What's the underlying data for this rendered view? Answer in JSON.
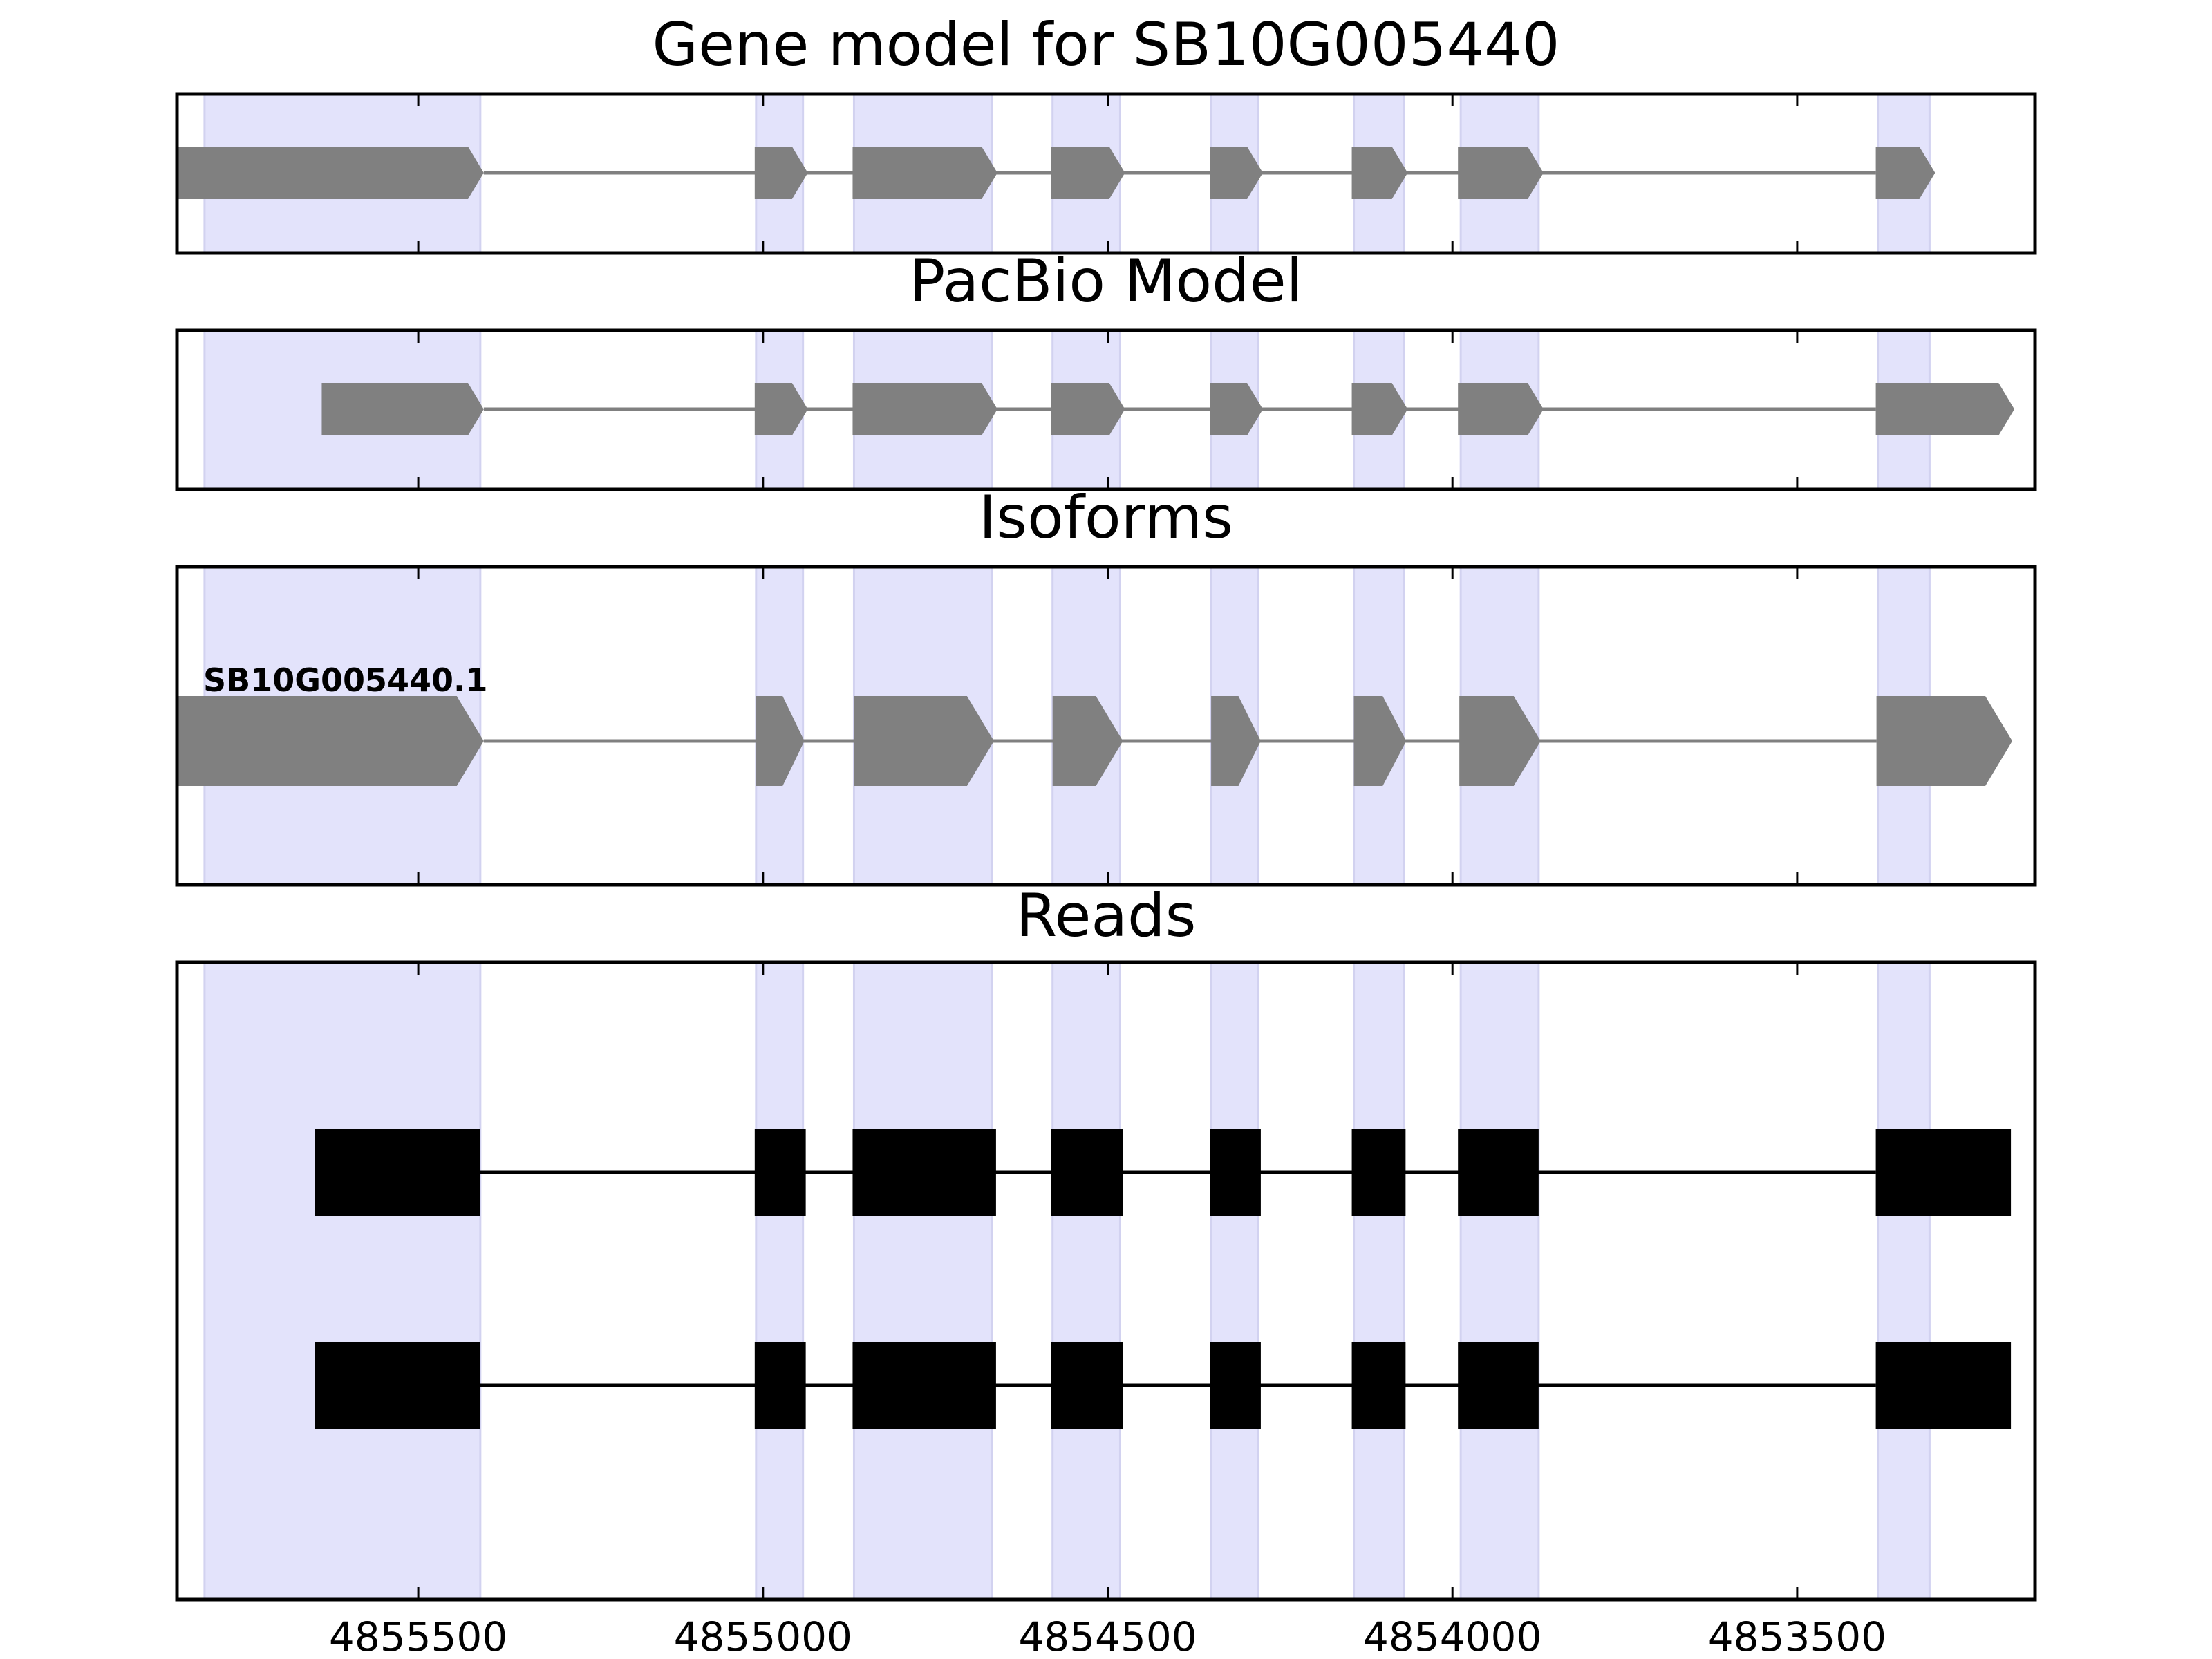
{
  "colors": {
    "exon_highlight": "#e3e3fb",
    "feature_fill": "#808080",
    "intron_line": "#808080",
    "read_fill": "#000000",
    "axis": "#000000",
    "background": "#ffffff"
  },
  "chart_data": {
    "type": "gene-track",
    "x_axis": {
      "range": [
        4855850,
        4853155
      ],
      "reversed": true,
      "ticks": [
        4855500,
        4855000,
        4854500,
        4854000,
        4853500
      ],
      "tick_labels": [
        "4855500",
        "4855000",
        "4854500",
        "4854000",
        "4853500"
      ]
    },
    "exon_highlights": [
      [
        4855810,
        4855410
      ],
      [
        4855010,
        4854942
      ],
      [
        4854868,
        4854668
      ],
      [
        4854580,
        4854482
      ],
      [
        4854350,
        4854282
      ],
      [
        4854143,
        4854070
      ],
      [
        4853988,
        4853875
      ],
      [
        4853383,
        4853308
      ]
    ],
    "panels": [
      {
        "title": "Gene model for SB10G005440",
        "kind": "arrows",
        "features": [
          [
            4855850,
            4855405
          ],
          [
            4855012,
            4854935
          ],
          [
            4854870,
            4854660
          ],
          [
            4854582,
            4854475
          ],
          [
            4854352,
            4854275
          ],
          [
            4854146,
            4854065
          ],
          [
            4853992,
            4853868
          ],
          [
            4853386,
            4853300
          ]
        ]
      },
      {
        "title": "PacBio Model",
        "kind": "arrows",
        "features": [
          [
            4855640,
            4855405
          ],
          [
            4855012,
            4854935
          ],
          [
            4854870,
            4854660
          ],
          [
            4854582,
            4854475
          ],
          [
            4854352,
            4854275
          ],
          [
            4854146,
            4854065
          ],
          [
            4853992,
            4853868
          ],
          [
            4853386,
            4853185
          ]
        ]
      },
      {
        "title": "Isoforms",
        "kind": "arrows",
        "label": "SB10G005440.1",
        "features": [
          [
            4855850,
            4855405
          ],
          [
            4855010,
            4854940
          ],
          [
            4854868,
            4854665
          ],
          [
            4854580,
            4854478
          ],
          [
            4854350,
            4854278
          ],
          [
            4854143,
            4854067
          ],
          [
            4853990,
            4853872
          ],
          [
            4853385,
            4853188
          ]
        ]
      },
      {
        "title": "Reads",
        "kind": "blocks",
        "reads": [
          [
            [
              4855650,
              4855410
            ],
            [
              4855012,
              4854938
            ],
            [
              4854870,
              4854662
            ],
            [
              4854582,
              4854478
            ],
            [
              4854352,
              4854278
            ],
            [
              4854146,
              4854068
            ],
            [
              4853992,
              4853875
            ],
            [
              4853386,
              4853190
            ]
          ],
          [
            [
              4855650,
              4855410
            ],
            [
              4855012,
              4854938
            ],
            [
              4854870,
              4854662
            ],
            [
              4854582,
              4854478
            ],
            [
              4854352,
              4854278
            ],
            [
              4854146,
              4854068
            ],
            [
              4853992,
              4853875
            ],
            [
              4853386,
              4853190
            ]
          ]
        ]
      }
    ]
  }
}
